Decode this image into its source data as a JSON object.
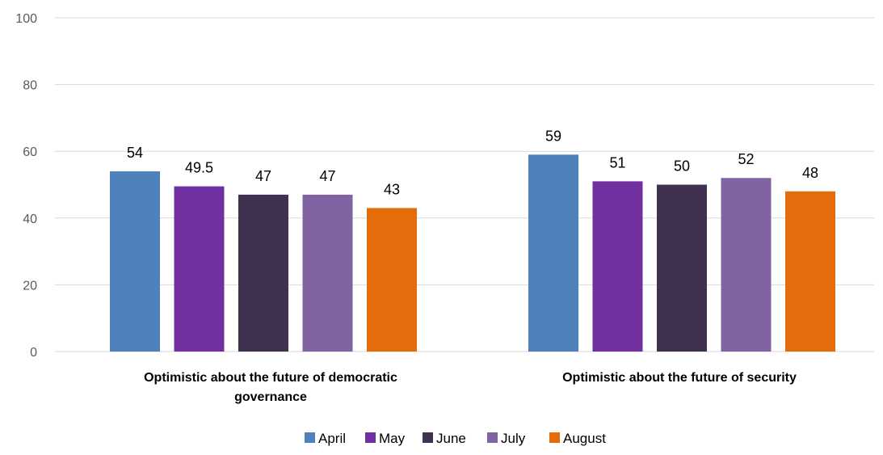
{
  "chart_data": {
    "type": "bar",
    "categories": [
      [
        "Optimistic about the future of democratic",
        "governance"
      ],
      [
        "Optimistic about the future of security"
      ]
    ],
    "series": [
      {
        "name": "April",
        "color": "#4f81bd",
        "values": [
          54,
          59
        ],
        "labels": [
          "54",
          "59"
        ]
      },
      {
        "name": "May",
        "color": "#7030a0",
        "values": [
          49.5,
          51
        ],
        "labels": [
          "49.5",
          "51"
        ]
      },
      {
        "name": "June",
        "color": "#403151",
        "values": [
          47,
          50
        ],
        "labels": [
          "47",
          "50"
        ]
      },
      {
        "name": "July",
        "color": "#8064a2",
        "values": [
          47,
          52
        ],
        "labels": [
          "47",
          "52"
        ]
      },
      {
        "name": "August",
        "color": "#e46c0a",
        "values": [
          43,
          48
        ],
        "labels": [
          "43",
          "48"
        ]
      }
    ],
    "yticks": [
      "0",
      "20",
      "40",
      "60",
      "80",
      "100"
    ],
    "ylim": [
      0,
      100
    ],
    "grid": true,
    "legend_position": "bottom",
    "gridline_color": "#d9d9d9"
  }
}
